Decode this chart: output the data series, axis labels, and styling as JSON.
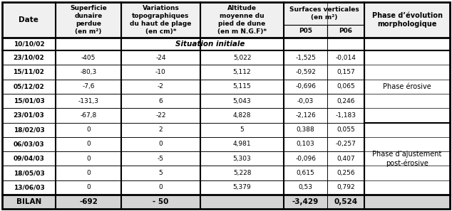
{
  "col_proportions": [
    0.103,
    0.127,
    0.152,
    0.162,
    0.083,
    0.072,
    0.165
  ],
  "col_headers": [
    "Date",
    "Superficie\ndunaire\nperdue\n(en m²)",
    "Variations\ntopographiques\ndu haut de plage\n(en cm)*",
    "Altitude\nmoyenne du\npied de dune\n(en m N.G.F)*",
    "P05",
    "P06",
    "Phase d’évolution\nmorphologique"
  ],
  "surfaces_header": "Surfaces verticales\n(en m²)",
  "rows": [
    [
      "10/10/02",
      "",
      "",
      "Situation initiale",
      "",
      "",
      ""
    ],
    [
      "23/10/02",
      "-405",
      "-24",
      "5,022",
      "-1,525",
      "-0,014",
      ""
    ],
    [
      "15/11/02",
      "-80,3",
      "-10",
      "5,112",
      "-0,592",
      "0,157",
      ""
    ],
    [
      "05/12/02",
      "-7,6",
      "-2",
      "5,115",
      "-0,696",
      "0,065",
      ""
    ],
    [
      "15/01/03",
      "-131,3",
      "6",
      "5,043",
      "-0,03",
      "0,246",
      ""
    ],
    [
      "23/01/03",
      "-67,8",
      "-22",
      "4,828",
      "-2,126",
      "-1,183",
      ""
    ],
    [
      "18/02/03",
      "0",
      "2",
      "5",
      "0,388",
      "0,055",
      ""
    ],
    [
      "06/03/03",
      "0",
      "0",
      "4,981",
      "0,103",
      "-0,257",
      ""
    ],
    [
      "09/04/03",
      "0",
      "-5",
      "5,303",
      "-0,096",
      "0,407",
      ""
    ],
    [
      "18/05/03",
      "0",
      "5",
      "5,228",
      "0,615",
      "0,256",
      ""
    ],
    [
      "13/06/03",
      "0",
      "0",
      "5,379",
      "0,53",
      "0,792",
      ""
    ],
    [
      "BILAN",
      "-692",
      "- 50",
      "",
      "-3,429",
      "0,524",
      ""
    ]
  ],
  "phase_erosive_rows": [
    1,
    2,
    3,
    4,
    5
  ],
  "phase_ajustement_rows": [
    6,
    7,
    8,
    9,
    10
  ],
  "bilan_row": 11,
  "situation_initiale_row": 0,
  "phase_erosive_text": "Phase érosive",
  "phase_ajustement_text": "Phase d’ajustement\npost-érosive",
  "situation_text": "Situation initiale",
  "bg_color": "#ffffff"
}
